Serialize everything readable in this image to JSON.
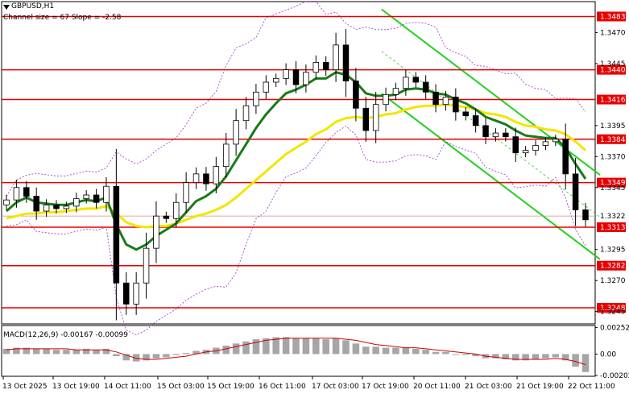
{
  "header": {
    "symbol": "GBPUSD,H1",
    "channel_label": "Channel size = 67 Slope = -2.58",
    "macd_label": "MACD(12,26,9) -0.00167 -0.00099"
  },
  "colors": {
    "background": "#ffffff",
    "candle": "#000000",
    "level_line": "#e60000",
    "ma_fast": "#1a7a1a",
    "ma_slow": "#f2e600",
    "bollinger": "#9b30c8",
    "channel": "#22d022",
    "macd_hist": "#a6a6a6",
    "macd_signal": "#cc0000"
  },
  "chart_data": [
    {
      "type": "candlestick",
      "title": "GBPUSD,H1",
      "ylim": [
        1.3235,
        1.3495
      ],
      "y_ticks": [
        1.347,
        1.3445,
        1.3395,
        1.337,
        1.3345,
        1.3295,
        1.327,
        1.3245
      ],
      "x_tick_labels": [
        "13 Oct 2025",
        "13 Oct 19:00",
        "14 Oct 11:00",
        "15 Oct 03:00",
        "15 Oct 19:00",
        "16 Oct 11:00",
        "17 Oct 03:00",
        "17 Oct 19:00",
        "20 Oct 11:00",
        "21 Oct 03:00",
        "21 Oct 19:00",
        "22 Oct 11:00"
      ],
      "levels": [
        1.3483,
        1.344,
        1.3416,
        1.3384,
        1.3349,
        1.3313,
        1.3282,
        1.3248
      ],
      "current_price": 1.3322,
      "current_price_label": "1.3322",
      "close_series": [
        1.3335,
        1.3345,
        1.3338,
        1.3326,
        1.3331,
        1.3328,
        1.333,
        1.3336,
        1.3339,
        1.3333,
        1.3346,
        1.3268,
        1.3251,
        1.3268,
        1.3296,
        1.3322,
        1.332,
        1.3333,
        1.3349,
        1.3356,
        1.3348,
        1.3362,
        1.338,
        1.3399,
        1.3411,
        1.3422,
        1.343,
        1.3433,
        1.344,
        1.3428,
        1.3438,
        1.3446,
        1.344,
        1.346,
        1.3431,
        1.3409,
        1.3391,
        1.3412,
        1.342,
        1.3425,
        1.3434,
        1.343,
        1.3422,
        1.3412,
        1.3418,
        1.3406,
        1.3403,
        1.3395,
        1.3386,
        1.3389,
        1.3386,
        1.3373,
        1.3375,
        1.3379,
        1.3382,
        1.3384,
        1.3356,
        1.3327,
        1.3319
      ],
      "ma_fast_series": [
        1.3326,
        1.3333,
        1.3337,
        1.3333,
        1.3332,
        1.3331,
        1.3331,
        1.3333,
        1.3335,
        1.3334,
        1.3337,
        1.3315,
        1.3299,
        1.3295,
        1.3299,
        1.3306,
        1.3311,
        1.3316,
        1.3325,
        1.3334,
        1.3338,
        1.3344,
        1.3354,
        1.3367,
        1.338,
        1.3393,
        1.3404,
        1.3413,
        1.3421,
        1.3424,
        1.3428,
        1.3433,
        1.3433,
        1.3438,
        1.3436,
        1.343,
        1.3421,
        1.3419,
        1.3419,
        1.342,
        1.3424,
        1.3425,
        1.3424,
        1.3421,
        1.342,
        1.3416,
        1.3413,
        1.3408,
        1.3402,
        1.3399,
        1.3396,
        1.3391,
        1.3387,
        1.3386,
        1.3385,
        1.3385,
        1.3377,
        1.3364,
        1.3352
      ],
      "ma_slow_series": [
        1.332,
        1.3322,
        1.3324,
        1.3324,
        1.3325,
        1.3325,
        1.3326,
        1.3327,
        1.3328,
        1.3328,
        1.333,
        1.3324,
        1.3317,
        1.3314,
        1.3313,
        1.3314,
        1.3314,
        1.3316,
        1.3319,
        1.3322,
        1.3324,
        1.3327,
        1.3331,
        1.3337,
        1.3344,
        1.3351,
        1.3358,
        1.3365,
        1.3372,
        1.3377,
        1.3382,
        1.3388,
        1.3392,
        1.3398,
        1.3401,
        1.3402,
        1.3401,
        1.3402,
        1.3404,
        1.3405,
        1.3408,
        1.341,
        1.3411,
        1.3411,
        1.3412,
        1.3411,
        1.341,
        1.3408,
        1.3405,
        1.3404,
        1.3402,
        1.3398,
        1.3395,
        1.3394,
        1.3392,
        1.3391,
        1.3388,
        1.3382,
        1.3375
      ]
    },
    {
      "type": "bar",
      "title": "MACD(12,26,9) -0.00167 -0.00099",
      "ylim": [
        -0.0021,
        0.0027
      ],
      "y_ticks": [
        0.00252,
        0.0,
        -0.00202
      ],
      "y_tick_labels": [
        "0.00252",
        "0.00",
        "-0.00202"
      ],
      "histogram": [
        0.0005,
        0.0006,
        0.0006,
        0.0005,
        0.0005,
        0.0004,
        0.0004,
        0.0004,
        0.0005,
        0.0004,
        0.0005,
        -0.0002,
        -0.0006,
        -0.0007,
        -0.0006,
        -0.0004,
        -0.0003,
        -0.0001,
        0.0001,
        0.0003,
        0.0004,
        0.0006,
        0.0008,
        0.001,
        0.0012,
        0.0014,
        0.0015,
        0.0016,
        0.0016,
        0.0015,
        0.0015,
        0.0015,
        0.0014,
        0.0015,
        0.0013,
        0.001,
        0.0007,
        0.0007,
        0.0006,
        0.0006,
        0.0006,
        0.0005,
        0.0004,
        0.0002,
        0.0002,
        0.0,
        -0.0001,
        -0.0002,
        -0.0004,
        -0.0004,
        -0.0005,
        -0.0006,
        -0.0006,
        -0.0005,
        -0.0004,
        -0.0003,
        -0.0006,
        -0.0012,
        -0.0017
      ],
      "signal": [
        0.0004,
        0.0005,
        0.0005,
        0.0005,
        0.0005,
        0.0005,
        0.0005,
        0.0004,
        0.0004,
        0.0004,
        0.0004,
        0.0002,
        -0.0001,
        -0.0004,
        -0.0005,
        -0.0005,
        -0.0004,
        -0.0003,
        -0.0002,
        0.0,
        0.0002,
        0.0003,
        0.0005,
        0.0007,
        0.0009,
        0.0011,
        0.0013,
        0.0014,
        0.0015,
        0.0015,
        0.0015,
        0.0015,
        0.0015,
        0.0015,
        0.0014,
        0.0013,
        0.0011,
        0.0009,
        0.0008,
        0.0007,
        0.0006,
        0.0006,
        0.0005,
        0.0004,
        0.0003,
        0.0002,
        0.0001,
        0.0,
        -0.0002,
        -0.0003,
        -0.0004,
        -0.0005,
        -0.0005,
        -0.0005,
        -0.0005,
        -0.0004,
        -0.0005,
        -0.0007,
        -0.001
      ]
    }
  ]
}
